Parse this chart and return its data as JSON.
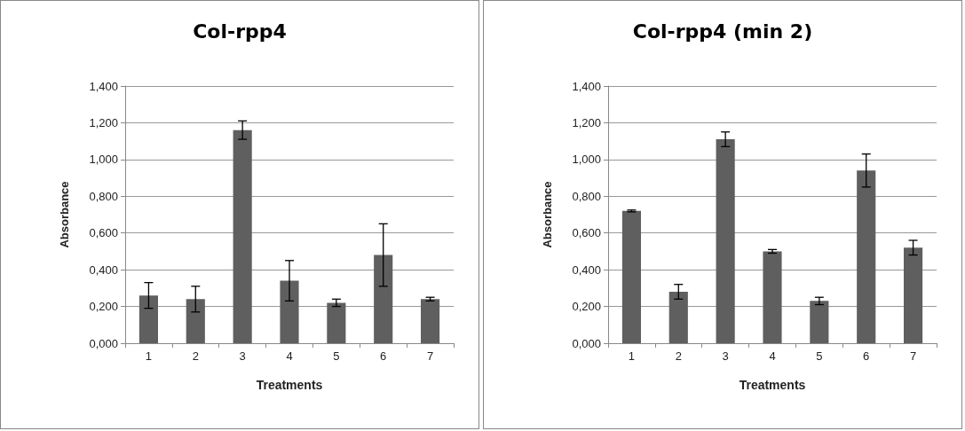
{
  "chart_data": [
    {
      "type": "bar",
      "title": "Col-rpp4",
      "xlabel": "Treatments",
      "ylabel": "Absorbance",
      "categories": [
        "1",
        "2",
        "3",
        "4",
        "5",
        "6",
        "7"
      ],
      "values": [
        0.26,
        0.24,
        1.16,
        0.34,
        0.22,
        0.48,
        0.24
      ],
      "errors": [
        0.07,
        0.07,
        0.05,
        0.11,
        0.02,
        0.17,
        0.01
      ],
      "color": "#5f5f5f",
      "ylim": [
        0,
        1.4
      ],
      "yticks": [
        {
          "value": 0,
          "label": "0,000"
        },
        {
          "value": 0.2,
          "label": "0,200"
        },
        {
          "value": 0.4,
          "label": "0,400"
        },
        {
          "value": 0.6,
          "label": "0,600"
        },
        {
          "value": 0.8,
          "label": "0,800"
        },
        {
          "value": 1,
          "label": "1,000"
        },
        {
          "value": 1.2,
          "label": "1,200"
        },
        {
          "value": 1.4,
          "label": "1,400"
        }
      ],
      "grid": "y"
    },
    {
      "type": "bar",
      "title": "Col-rpp4 (min 2)",
      "xlabel": "Treatments",
      "ylabel": "Absorbance",
      "categories": [
        "1",
        "2",
        "3",
        "4",
        "5",
        "6",
        "7"
      ],
      "values": [
        0.72,
        0.28,
        1.11,
        0.5,
        0.23,
        0.94,
        0.52
      ],
      "errors": [
        0.005,
        0.04,
        0.04,
        0.01,
        0.02,
        0.09,
        0.04
      ],
      "color": "#5f5f5f",
      "ylim": [
        0,
        1.4
      ],
      "yticks": [
        {
          "value": 0,
          "label": "0,000"
        },
        {
          "value": 0.2,
          "label": "0,200"
        },
        {
          "value": 0.4,
          "label": "0,400"
        },
        {
          "value": 0.6,
          "label": "0,600"
        },
        {
          "value": 0.8,
          "label": "0,800"
        },
        {
          "value": 1,
          "label": "1,000"
        },
        {
          "value": 1.2,
          "label": "1,200"
        },
        {
          "value": 1.4,
          "label": "1,400"
        }
      ],
      "grid": "y"
    }
  ]
}
